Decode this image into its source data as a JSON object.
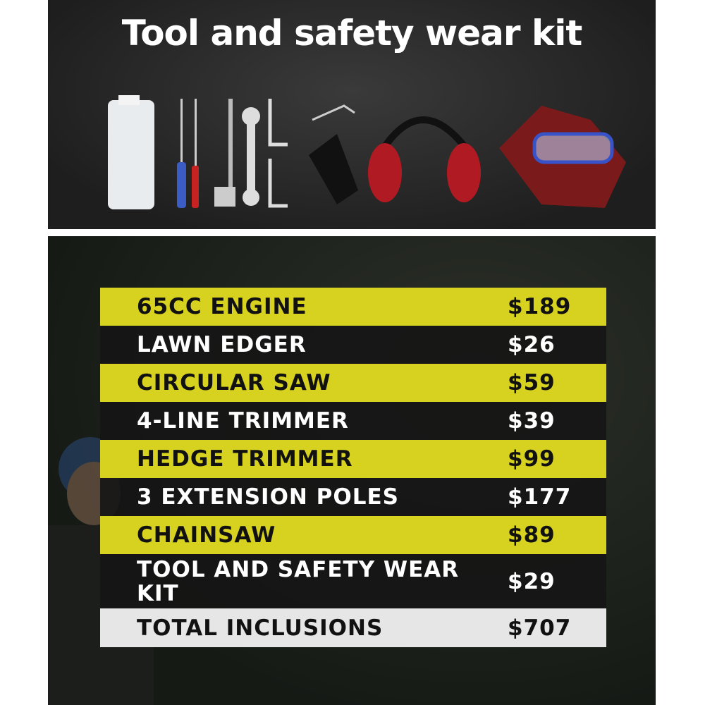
{
  "title": "Tool and safety wear kit",
  "tool_icons": [
    "oil-bottle",
    "screwdriver",
    "screwdriver",
    "spark-plug-wrench",
    "spanner",
    "allen-key",
    "allen-key",
    "harness-strap",
    "ear-muffs",
    "gloves",
    "safety-goggles"
  ],
  "colors": {
    "highlight_row": "#d7d11f",
    "dark_row": "#141414",
    "total_row": "#e6e6e6"
  },
  "items": [
    {
      "name": "65CC ENGINE",
      "price": "$189",
      "style": "y"
    },
    {
      "name": "LAWN EDGER",
      "price": "$26",
      "style": "d"
    },
    {
      "name": "CIRCULAR SAW",
      "price": "$59",
      "style": "y"
    },
    {
      "name": "4-LINE TRIMMER",
      "price": "$39",
      "style": "d"
    },
    {
      "name": "HEDGE TRIMMER",
      "price": "$99",
      "style": "y"
    },
    {
      "name": "3 EXTENSION POLES",
      "price": "$177",
      "style": "d"
    },
    {
      "name": "CHAINSAW",
      "price": "$89",
      "style": "y"
    },
    {
      "name": "TOOL AND SAFETY WEAR KIT",
      "price": "$29",
      "style": "d"
    }
  ],
  "total": {
    "name": "TOTAL INCLUSIONS",
    "price": "$707"
  }
}
